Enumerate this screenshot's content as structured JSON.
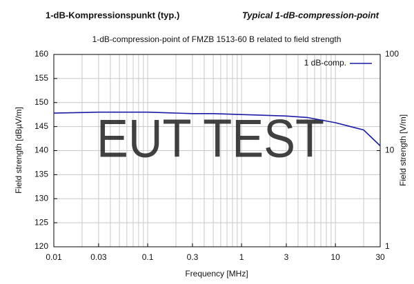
{
  "header": {
    "left": "1-dB-Kompressionspunkt (typ.)",
    "right": "Typical 1-dB-compression-point"
  },
  "chart_data": {
    "type": "line",
    "title": "1-dB-compression-point of FMZB 1513-60 B related to field strength",
    "xlabel": "Frequency [MHz]",
    "ylabel": "Field strength [dBµV/m]",
    "y2label": "Field strength [V/m]",
    "watermark": "EUT TEST",
    "x": [
      0.01,
      0.03,
      0.1,
      0.3,
      0.5,
      1,
      3,
      5,
      10,
      20,
      30
    ],
    "series": [
      {
        "name": "1 dB-comp.",
        "color": "#1a1aa6",
        "values": [
          147.8,
          148,
          148,
          147.7,
          147.7,
          147.5,
          147.2,
          146.9,
          145.8,
          144.3,
          141
        ]
      }
    ],
    "xlim": [
      0.01,
      30
    ],
    "xlog": true,
    "xticks": [
      0.01,
      0.03,
      0.1,
      0.3,
      1,
      3,
      10,
      30
    ],
    "xgrid": [
      0.02,
      0.03,
      0.04,
      0.05,
      0.06,
      0.07,
      0.08,
      0.09,
      0.1,
      0.2,
      0.3,
      0.4,
      0.5,
      0.6,
      0.7,
      0.8,
      0.9,
      1,
      2,
      3,
      4,
      5,
      6,
      7,
      8,
      9,
      10,
      20
    ],
    "ylim": [
      120,
      160
    ],
    "yticks": [
      120,
      125,
      130,
      135,
      140,
      145,
      150,
      155,
      160
    ],
    "y2lim": [
      1,
      100
    ],
    "y2log": true,
    "y2ticks": [
      1,
      10,
      100
    ],
    "grid": true,
    "legend": "upper right"
  }
}
